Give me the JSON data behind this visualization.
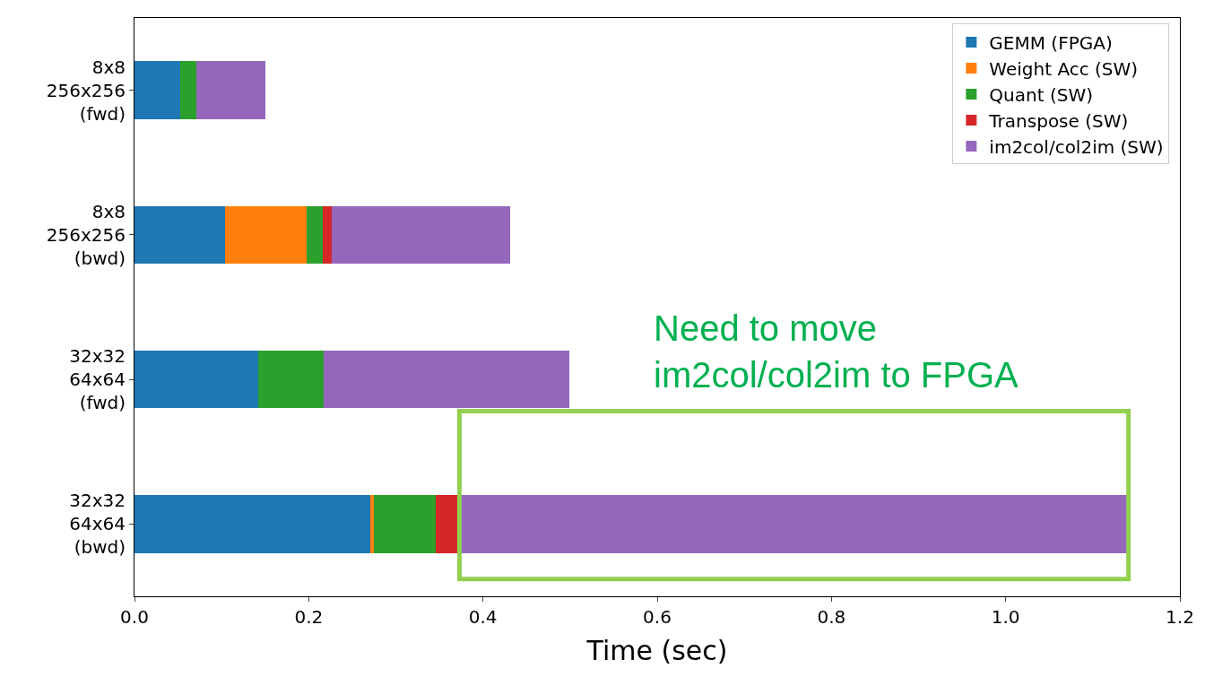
{
  "chart_data": {
    "type": "bar",
    "orientation": "horizontal",
    "stacked": true,
    "categories": [
      "8x8\n256x256\n(fwd)",
      "8x8\n256x256\n(bwd)",
      "32x32\n64x64\n(fwd)",
      "32x32\n64x64\n(bwd)"
    ],
    "series": [
      {
        "name": "GEMM (FPGA)",
        "color": "#1f77b4",
        "values": [
          0.052,
          0.104,
          0.142,
          0.271
        ]
      },
      {
        "name": "Weight Acc (SW)",
        "color": "#ff7f0e",
        "values": [
          0,
          0.094,
          0,
          0.004
        ]
      },
      {
        "name": "Quant (SW)",
        "color": "#2ca02c",
        "values": [
          0.019,
          0.018,
          0.075,
          0.071
        ]
      },
      {
        "name": "Transpose (SW)",
        "color": "#d62728",
        "values": [
          0,
          0.01,
          0,
          0.027
        ]
      },
      {
        "name": "im2col/col2im (SW)",
        "color": "#9467bd",
        "values": [
          0.079,
          0.205,
          0.282,
          0.768
        ]
      }
    ],
    "xlabel": "Time (sec)",
    "xlim": [
      0,
      1.2
    ],
    "xticks": [
      {
        "value": 0,
        "label": "0.0"
      },
      {
        "value": 0.2,
        "label": "0.2"
      },
      {
        "value": 0.4,
        "label": "0.4"
      },
      {
        "value": 0.6,
        "label": "0.6"
      },
      {
        "value": 0.8,
        "label": "0.8"
      },
      {
        "value": 1.0,
        "label": "1.0"
      },
      {
        "value": 1.2,
        "label": "1.2"
      }
    ],
    "legend": "top right",
    "annotations": [
      "Need to move\nim2col/col2im to FPGA"
    ]
  }
}
